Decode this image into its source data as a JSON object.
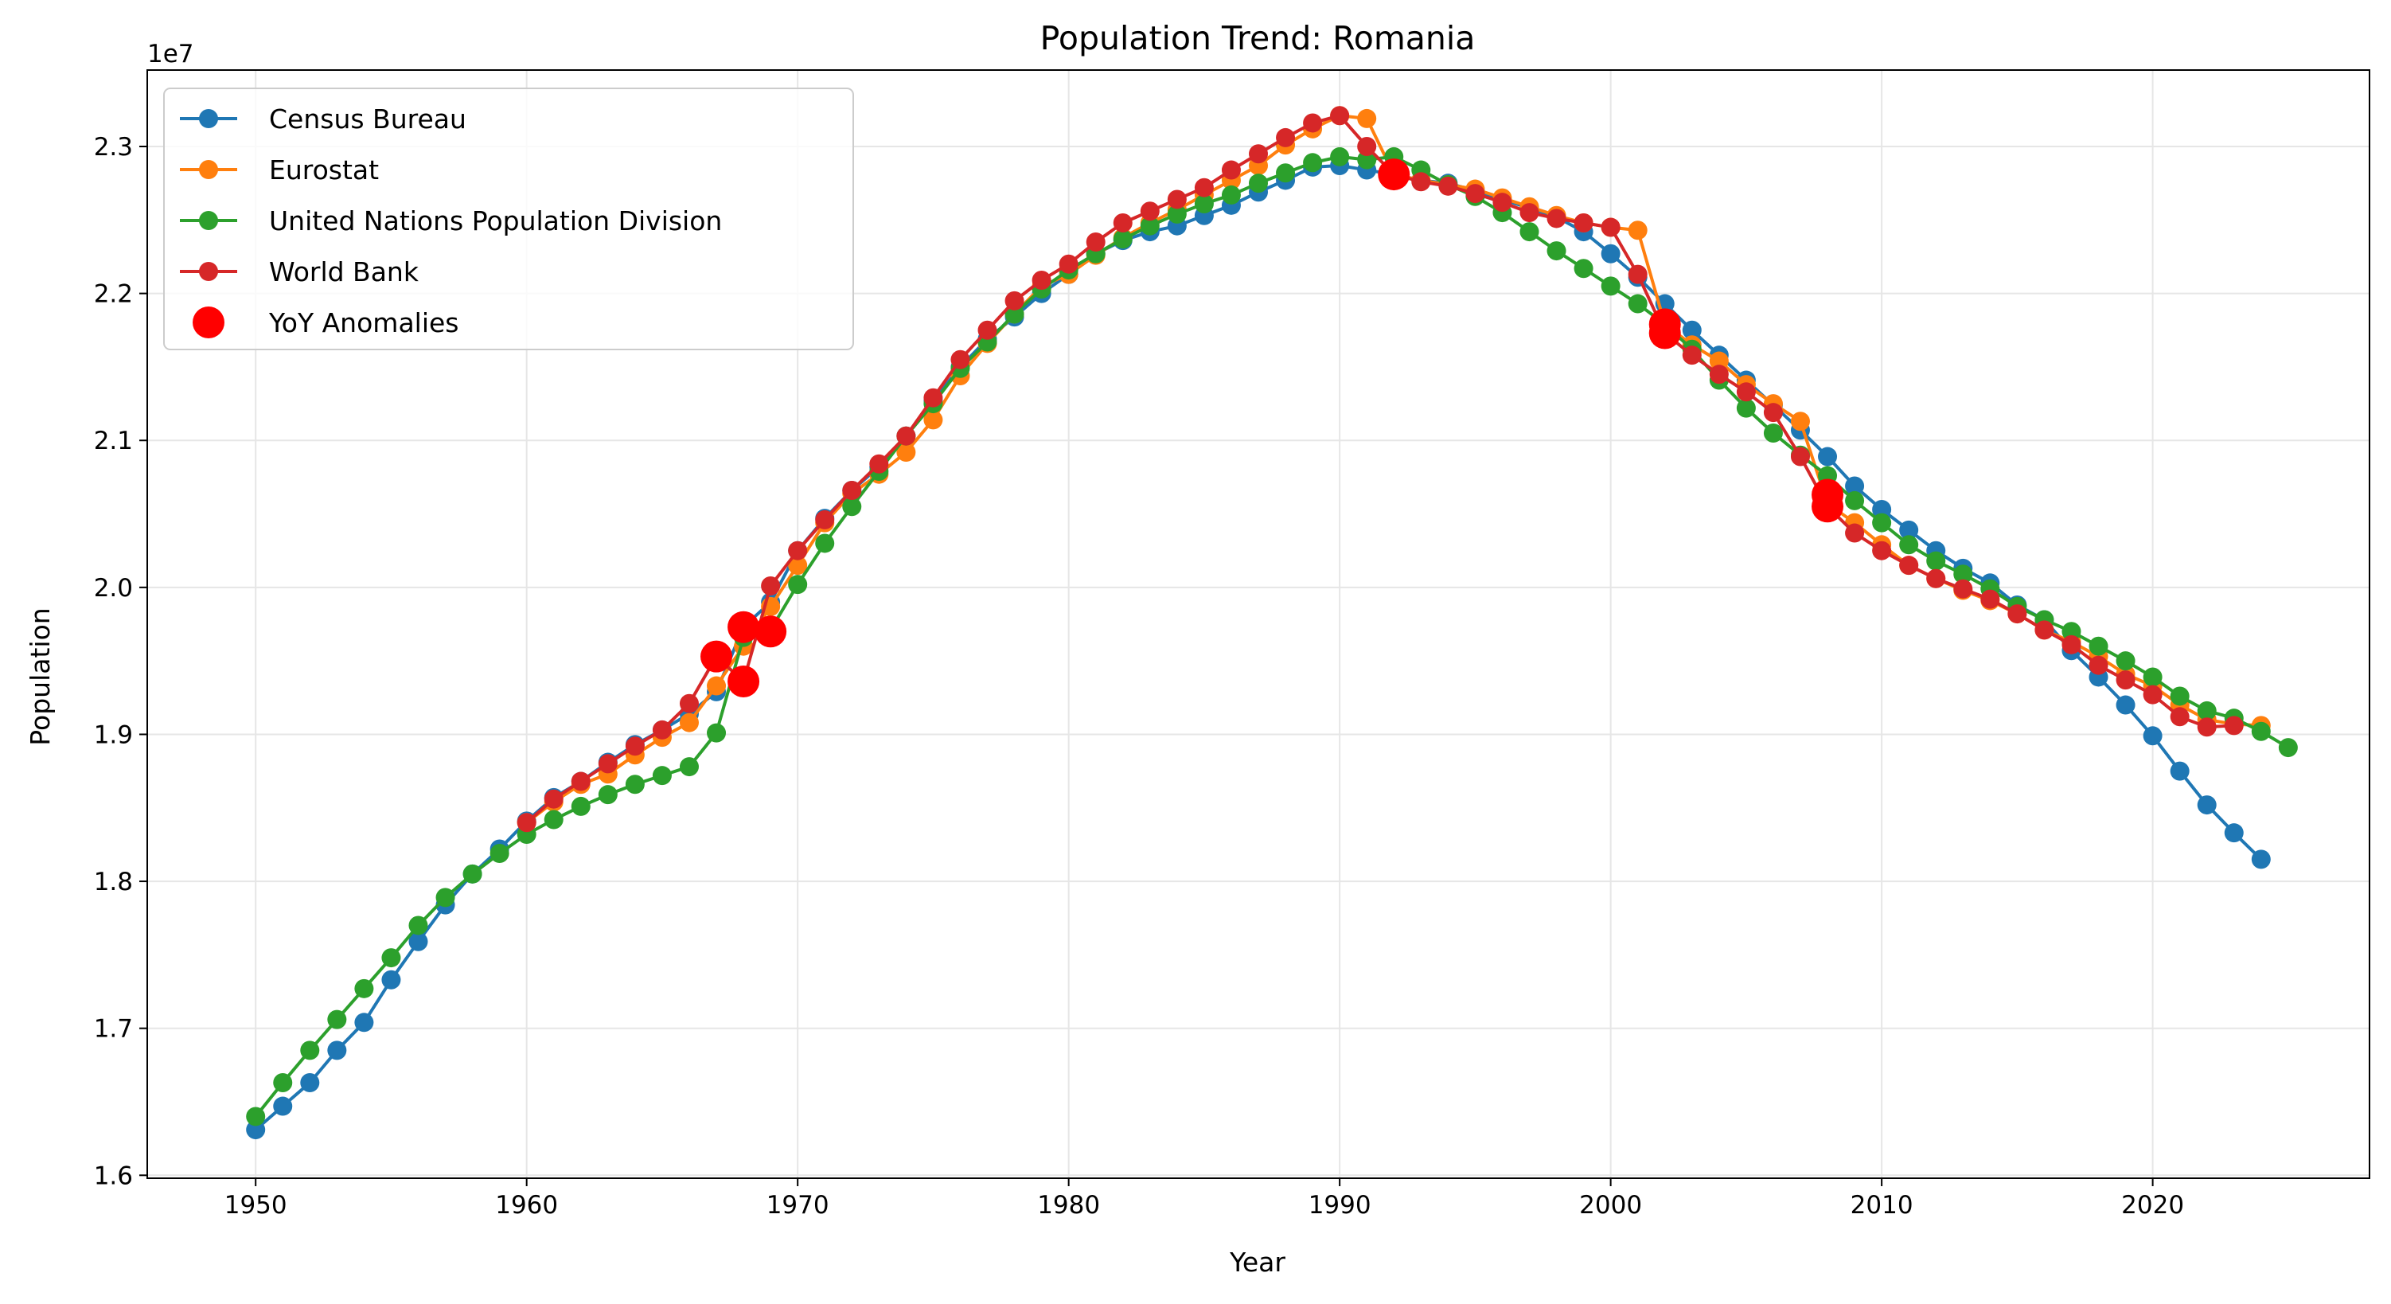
{
  "chart_data": {
    "type": "line",
    "title": "Population Trend: Romania",
    "xlabel": "Year",
    "ylabel": "Population",
    "y_offset_label": "1e7",
    "xlim": [
      1946,
      2028
    ],
    "ylim": [
      15.98,
      23.52
    ],
    "y_scale": 10000000,
    "grid": true,
    "legend_position": "top-left",
    "x_ticks": [
      1950,
      1960,
      1970,
      1980,
      1990,
      2000,
      2010,
      2020
    ],
    "y_ticks": [
      16,
      17,
      18,
      19,
      20,
      21,
      22,
      23
    ],
    "y_tick_labels": [
      "1.6",
      "1.7",
      "1.8",
      "1.9",
      "2.0",
      "2.1",
      "2.2",
      "2.3"
    ],
    "series": [
      {
        "name": "Census Bureau",
        "color": "#1f77b4",
        "x": [
          1950,
          1951,
          1952,
          1953,
          1954,
          1955,
          1956,
          1957,
          1958,
          1959,
          1960,
          1961,
          1962,
          1963,
          1964,
          1965,
          1966,
          1967,
          1968,
          1969,
          1970,
          1971,
          1972,
          1973,
          1974,
          1975,
          1976,
          1977,
          1978,
          1979,
          1980,
          1981,
          1982,
          1983,
          1984,
          1985,
          1986,
          1987,
          1988,
          1989,
          1990,
          1991,
          1992,
          1993,
          1994,
          1995,
          1996,
          1997,
          1998,
          1999,
          2000,
          2001,
          2002,
          2003,
          2004,
          2005,
          2006,
          2007,
          2008,
          2009,
          2010,
          2011,
          2012,
          2013,
          2014,
          2015,
          2016,
          2017,
          2018,
          2019,
          2020,
          2021,
          2022,
          2023,
          2024
        ],
        "y": [
          16.31,
          16.47,
          16.63,
          16.85,
          17.04,
          17.33,
          17.59,
          17.84,
          18.05,
          18.22,
          18.41,
          18.57,
          18.68,
          18.81,
          18.93,
          19.03,
          19.14,
          19.29,
          19.73,
          19.9,
          20.25,
          20.47,
          20.66,
          20.82,
          21.03,
          21.27,
          21.5,
          21.69,
          21.84,
          22.0,
          22.13,
          22.27,
          22.36,
          22.42,
          22.46,
          22.53,
          22.6,
          22.69,
          22.77,
          22.86,
          22.87,
          22.84,
          22.81,
          22.77,
          22.75,
          22.7,
          22.64,
          22.58,
          22.52,
          22.42,
          22.27,
          22.11,
          21.93,
          21.75,
          21.58,
          21.41,
          21.24,
          21.07,
          20.89,
          20.69,
          20.53,
          20.39,
          20.25,
          20.13,
          20.03,
          19.88,
          19.78,
          19.57,
          19.39,
          19.2,
          18.99,
          18.75,
          18.52,
          18.33,
          18.15
        ]
      },
      {
        "name": "Eurostat",
        "color": "#ff7f0e",
        "x": [
          1960,
          1961,
          1962,
          1963,
          1964,
          1965,
          1966,
          1967,
          1968,
          1969,
          1970,
          1971,
          1972,
          1973,
          1974,
          1975,
          1976,
          1977,
          1978,
          1979,
          1980,
          1981,
          1982,
          1983,
          1984,
          1985,
          1986,
          1987,
          1988,
          1989,
          1990,
          1991,
          1992,
          1993,
          1994,
          1995,
          1996,
          1997,
          1998,
          1999,
          2000,
          2001,
          2002,
          2003,
          2004,
          2005,
          2006,
          2007,
          2008,
          2009,
          2010,
          2011,
          2012,
          2013,
          2014,
          2015,
          2016,
          2017,
          2018,
          2019,
          2020,
          2021,
          2022,
          2023,
          2024
        ],
        "y": [
          18.4,
          18.54,
          18.66,
          18.73,
          18.86,
          18.98,
          19.08,
          19.33,
          19.6,
          19.87,
          20.15,
          20.44,
          20.64,
          20.77,
          20.92,
          21.14,
          21.44,
          21.66,
          21.86,
          22.05,
          22.13,
          22.26,
          22.38,
          22.48,
          22.57,
          22.67,
          22.77,
          22.87,
          23.01,
          23.12,
          23.21,
          23.19,
          22.81,
          22.77,
          22.74,
          22.71,
          22.65,
          22.59,
          22.53,
          22.48,
          22.45,
          22.43,
          21.79,
          21.65,
          21.54,
          21.38,
          21.25,
          21.13,
          20.57,
          20.44,
          20.29,
          20.15,
          20.06,
          19.98,
          19.91,
          19.82,
          19.71,
          19.63,
          19.53,
          19.41,
          19.33,
          19.2,
          19.1,
          19.07,
          19.06
        ]
      },
      {
        "name": "United Nations Population Division",
        "color": "#2ca02c",
        "x": [
          1950,
          1951,
          1952,
          1953,
          1954,
          1955,
          1956,
          1957,
          1958,
          1959,
          1960,
          1961,
          1962,
          1963,
          1964,
          1965,
          1966,
          1967,
          1968,
          1969,
          1970,
          1971,
          1972,
          1973,
          1974,
          1975,
          1976,
          1977,
          1978,
          1979,
          1980,
          1981,
          1982,
          1983,
          1984,
          1985,
          1986,
          1987,
          1988,
          1989,
          1990,
          1991,
          1992,
          1993,
          1994,
          1995,
          1996,
          1997,
          1998,
          1999,
          2000,
          2001,
          2002,
          2003,
          2004,
          2005,
          2006,
          2007,
          2008,
          2009,
          2010,
          2011,
          2012,
          2013,
          2014,
          2015,
          2016,
          2017,
          2018,
          2019,
          2020,
          2021,
          2022,
          2023,
          2024,
          2025
        ],
        "y": [
          16.4,
          16.63,
          16.85,
          17.06,
          17.27,
          17.48,
          17.7,
          17.89,
          18.05,
          18.19,
          18.32,
          18.42,
          18.51,
          18.59,
          18.66,
          18.72,
          18.78,
          19.01,
          19.66,
          19.71,
          20.02,
          20.3,
          20.55,
          20.79,
          21.03,
          21.25,
          21.49,
          21.67,
          21.86,
          22.03,
          22.16,
          22.27,
          22.37,
          22.46,
          22.54,
          22.61,
          22.67,
          22.75,
          22.82,
          22.89,
          22.93,
          22.91,
          22.93,
          22.84,
          22.74,
          22.66,
          22.55,
          22.42,
          22.29,
          22.17,
          22.05,
          21.93,
          21.79,
          21.62,
          21.41,
          21.22,
          21.05,
          20.9,
          20.76,
          20.59,
          20.44,
          20.29,
          20.18,
          20.09,
          19.99,
          19.87,
          19.78,
          19.7,
          19.6,
          19.5,
          19.39,
          19.26,
          19.16,
          19.11,
          19.02,
          18.91
        ]
      },
      {
        "name": "World Bank",
        "color": "#d62728",
        "x": [
          1960,
          1961,
          1962,
          1963,
          1964,
          1965,
          1966,
          1967,
          1968,
          1969,
          1970,
          1971,
          1972,
          1973,
          1974,
          1975,
          1976,
          1977,
          1978,
          1979,
          1980,
          1981,
          1982,
          1983,
          1984,
          1985,
          1986,
          1987,
          1988,
          1989,
          1990,
          1991,
          1992,
          1993,
          1994,
          1995,
          1996,
          1997,
          1998,
          1999,
          2000,
          2001,
          2002,
          2003,
          2004,
          2005,
          2006,
          2007,
          2008,
          2009,
          2010,
          2011,
          2012,
          2013,
          2014,
          2015,
          2016,
          2017,
          2018,
          2019,
          2020,
          2021,
          2022,
          2023
        ],
        "y": [
          18.4,
          18.56,
          18.68,
          18.8,
          18.92,
          19.03,
          19.21,
          19.53,
          19.36,
          20.01,
          20.25,
          20.46,
          20.66,
          20.84,
          21.03,
          21.29,
          21.55,
          21.75,
          21.95,
          22.09,
          22.2,
          22.35,
          22.48,
          22.56,
          22.64,
          22.72,
          22.84,
          22.95,
          23.06,
          23.16,
          23.21,
          23.0,
          22.81,
          22.76,
          22.73,
          22.68,
          22.62,
          22.55,
          22.51,
          22.48,
          22.45,
          22.13,
          21.73,
          21.58,
          21.45,
          21.33,
          21.19,
          20.89,
          20.55,
          20.37,
          20.25,
          20.15,
          20.06,
          19.99,
          19.92,
          19.82,
          19.71,
          19.61,
          19.47,
          19.37,
          19.27,
          19.12,
          19.05,
          19.06
        ]
      },
      {
        "name": "YoY Anomalies",
        "color": "#ff0000",
        "type": "scatter",
        "x": [
          1967,
          1968,
          1968,
          1969,
          1992,
          2002,
          2002,
          2008,
          2008
        ],
        "y": [
          19.53,
          19.73,
          19.36,
          19.7,
          22.81,
          21.79,
          21.73,
          20.63,
          20.55
        ]
      }
    ]
  }
}
